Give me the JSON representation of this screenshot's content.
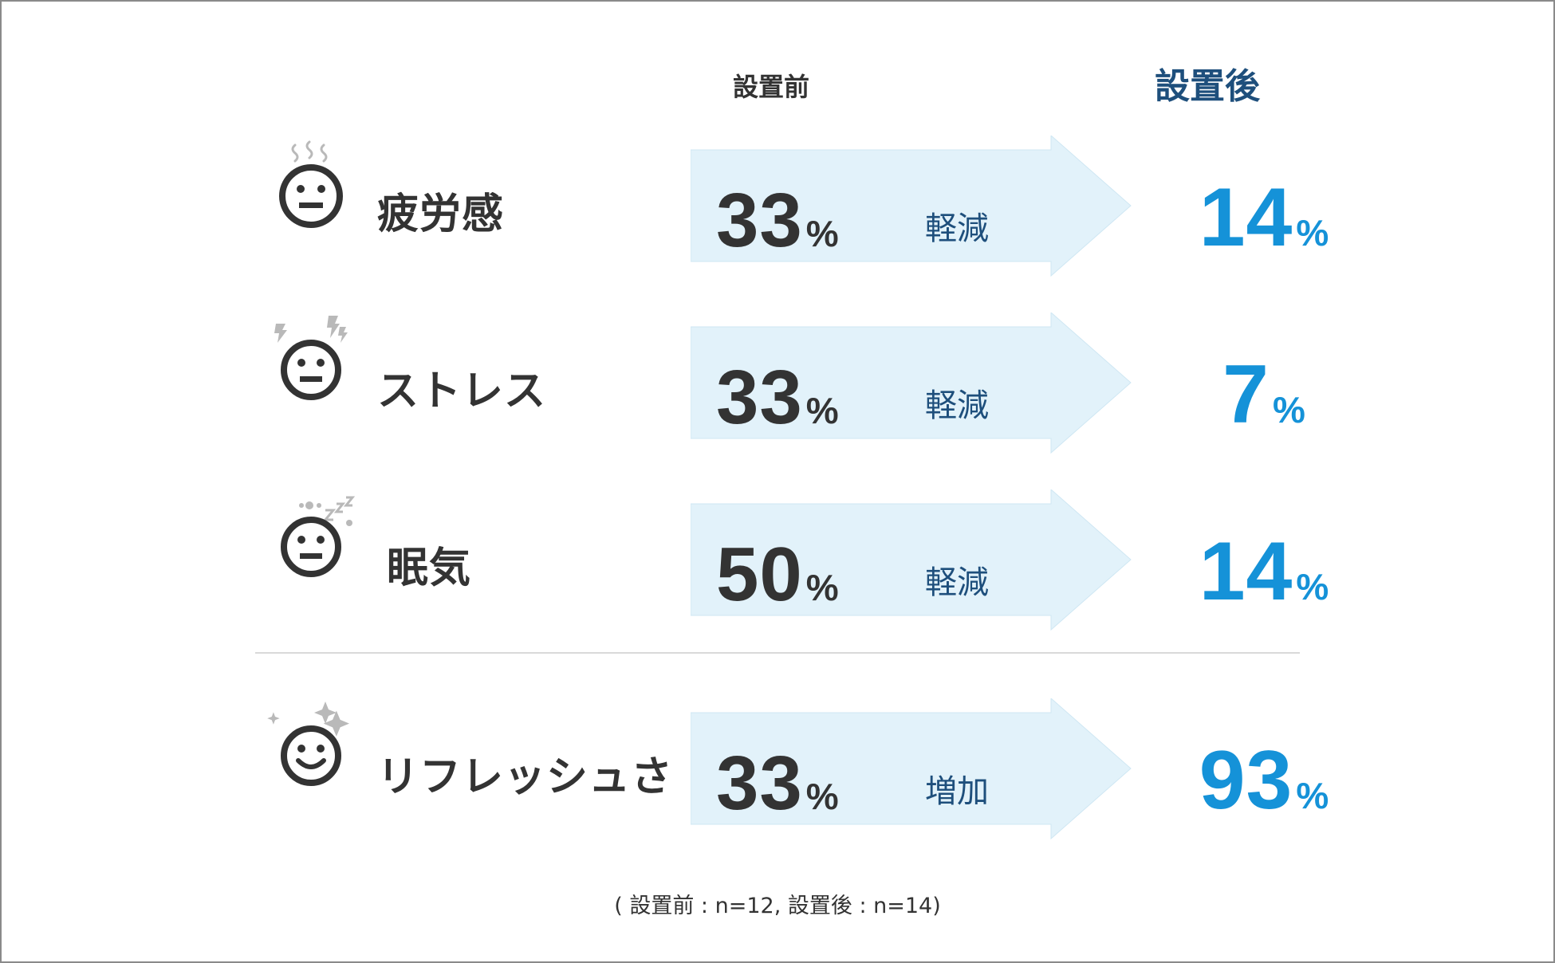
{
  "chart_data": {
    "type": "table",
    "column_headers": {
      "before": "設置前",
      "after": "設置後"
    },
    "rows": [
      {
        "label": "疲労感",
        "before": 33,
        "change": "軽減",
        "after": 14,
        "unit": "%",
        "face": "tired-steam"
      },
      {
        "label": "ストレス",
        "before": 33,
        "change": "軽減",
        "after": 7,
        "unit": "%",
        "face": "stress-lightning"
      },
      {
        "label": "眠気",
        "before": 50,
        "change": "軽減",
        "after": 14,
        "unit": "%",
        "face": "sleepy-zzz"
      },
      {
        "label": "リフレッシュさ",
        "before": 33,
        "change": "増加",
        "after": 93,
        "unit": "%",
        "face": "smile-sparkle"
      }
    ],
    "footnote": "( 設置前 : n=12, 設置後 : n=14)"
  },
  "colors": {
    "text_dark": "#333333",
    "header_after": "#1e4f7c",
    "after_value": "#1592d8",
    "arrow_fill": "#e2f2fa",
    "icon_dark": "#333333",
    "icon_gray": "#b9b9b9"
  }
}
